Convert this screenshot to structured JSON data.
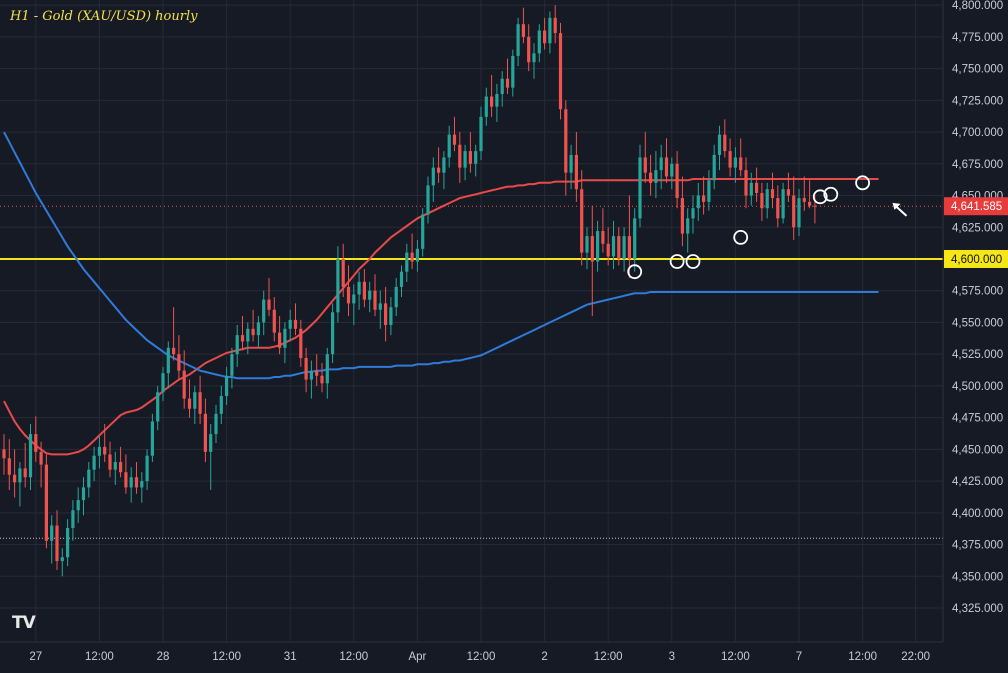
{
  "chart_data": {
    "type": "candlestick",
    "title": "H1 - Gold (XAU/USD) hourly",
    "ylim": [
      4310,
      4810
    ],
    "y_ticks": [
      4325,
      4350,
      4375,
      4400,
      4425,
      4450,
      4475,
      4500,
      4525,
      4550,
      4575,
      4600,
      4625,
      4650,
      4675,
      4700,
      4725,
      4750,
      4775,
      4800
    ],
    "y_tick_labels": [
      "4,325.000",
      "4,350.000",
      "4,375.000",
      "4,400.000",
      "4,425.000",
      "4,450.000",
      "4,475.000",
      "4,500.000",
      "4,525.000",
      "4,550.000",
      "4,575.000",
      "4,600.000",
      "4,625.000",
      "4,650.000",
      "4,675.000",
      "4,700.000",
      "4,725.000",
      "4,750.000",
      "4,775.000",
      "4,800.000"
    ],
    "x_tick_labels": [
      "27",
      "12:00",
      "28",
      "12:00",
      "31",
      "12:00",
      "Apr",
      "12:00",
      "2",
      "12:00",
      "3",
      "12:00",
      "7",
      "12:00",
      "22:00"
    ],
    "x_tick_index": [
      6,
      18,
      30,
      42,
      54,
      66,
      78,
      90,
      102,
      114,
      126,
      138,
      150,
      162,
      172
    ],
    "last_price": 4641.585,
    "last_price_label": "4,641.585",
    "horizontal_levels": [
      {
        "value": 4600,
        "label": "4,600.000",
        "color": "#f5e616",
        "style": "solid"
      },
      {
        "value": 4380,
        "color": "#c8c8c8",
        "style": "dotted"
      }
    ],
    "candle_colors": {
      "up": "#26a69a",
      "down": "#ef5350"
    },
    "candles": [
      [
        4450,
        4462,
        4430,
        4443
      ],
      [
        4443,
        4458,
        4418,
        4430
      ],
      [
        4430,
        4450,
        4412,
        4424
      ],
      [
        4424,
        4440,
        4405,
        4435
      ],
      [
        4435,
        4455,
        4420,
        4428
      ],
      [
        4428,
        4470,
        4418,
        4462
      ],
      [
        4462,
        4476,
        4440,
        4448
      ],
      [
        4448,
        4456,
        4420,
        4438
      ],
      [
        4438,
        4446,
        4372,
        4378
      ],
      [
        4378,
        4398,
        4360,
        4390
      ],
      [
        4390,
        4402,
        4355,
        4362
      ],
      [
        4362,
        4372,
        4350,
        4365
      ],
      [
        4365,
        4395,
        4358,
        4388
      ],
      [
        4388,
        4410,
        4378,
        4402
      ],
      [
        4402,
        4420,
        4392,
        4410
      ],
      [
        4410,
        4428,
        4398,
        4420
      ],
      [
        4420,
        4440,
        4412,
        4434
      ],
      [
        4434,
        4452,
        4425,
        4445
      ],
      [
        4445,
        4460,
        4435,
        4452
      ],
      [
        4452,
        4470,
        4440,
        4446
      ],
      [
        4446,
        4456,
        4428,
        4434
      ],
      [
        4434,
        4448,
        4422,
        4440
      ],
      [
        4440,
        4452,
        4428,
        4432
      ],
      [
        4432,
        4446,
        4415,
        4420
      ],
      [
        4420,
        4436,
        4408,
        4428
      ],
      [
        4428,
        4440,
        4415,
        4420
      ],
      [
        4420,
        4432,
        4408,
        4425
      ],
      [
        4425,
        4450,
        4418,
        4445
      ],
      [
        4445,
        4478,
        4440,
        4472
      ],
      [
        4472,
        4500,
        4465,
        4495
      ],
      [
        4495,
        4515,
        4488,
        4510
      ],
      [
        4510,
        4535,
        4498,
        4530
      ],
      [
        4530,
        4562,
        4520,
        4525
      ],
      [
        4525,
        4540,
        4505,
        4512
      ],
      [
        4512,
        4528,
        4482,
        4490
      ],
      [
        4490,
        4505,
        4475,
        4482
      ],
      [
        4482,
        4500,
        4470,
        4495
      ],
      [
        4495,
        4508,
        4470,
        4478
      ],
      [
        4478,
        4490,
        4440,
        4448
      ],
      [
        4448,
        4470,
        4418,
        4462
      ],
      [
        4462,
        4485,
        4455,
        4478
      ],
      [
        4478,
        4500,
        4470,
        4492
      ],
      [
        4492,
        4515,
        4485,
        4508
      ],
      [
        4508,
        4530,
        4498,
        4525
      ],
      [
        4525,
        4548,
        4515,
        4540
      ],
      [
        4540,
        4555,
        4528,
        4535
      ],
      [
        4535,
        4550,
        4525,
        4545
      ],
      [
        4545,
        4560,
        4535,
        4540
      ],
      [
        4540,
        4555,
        4530,
        4550
      ],
      [
        4550,
        4575,
        4540,
        4568
      ],
      [
        4568,
        4585,
        4555,
        4560
      ],
      [
        4560,
        4570,
        4535,
        4542
      ],
      [
        4542,
        4555,
        4525,
        4530
      ],
      [
        4530,
        4550,
        4518,
        4545
      ],
      [
        4545,
        4560,
        4535,
        4552
      ],
      [
        4552,
        4565,
        4540,
        4545
      ],
      [
        4545,
        4552,
        4515,
        4522
      ],
      [
        4522,
        4530,
        4495,
        4505
      ],
      [
        4505,
        4520,
        4490,
        4512
      ],
      [
        4512,
        4525,
        4500,
        4508
      ],
      [
        4508,
        4518,
        4495,
        4502
      ],
      [
        4502,
        4530,
        4490,
        4525
      ],
      [
        4525,
        4565,
        4518,
        4558
      ],
      [
        4558,
        4610,
        4550,
        4600
      ],
      [
        4600,
        4612,
        4570,
        4578
      ],
      [
        4578,
        4595,
        4555,
        4565
      ],
      [
        4565,
        4580,
        4548,
        4572
      ],
      [
        4572,
        4590,
        4560,
        4582
      ],
      [
        4582,
        4592,
        4562,
        4568
      ],
      [
        4568,
        4582,
        4558,
        4575
      ],
      [
        4575,
        4588,
        4555,
        4560
      ],
      [
        4560,
        4575,
        4545,
        4565
      ],
      [
        4565,
        4578,
        4535,
        4548
      ],
      [
        4548,
        4570,
        4540,
        4562
      ],
      [
        4562,
        4585,
        4555,
        4578
      ],
      [
        4578,
        4595,
        4570,
        4590
      ],
      [
        4590,
        4612,
        4582,
        4605
      ],
      [
        4605,
        4620,
        4592,
        4598
      ],
      [
        4598,
        4615,
        4590,
        4608
      ],
      [
        4608,
        4640,
        4602,
        4635
      ],
      [
        4635,
        4665,
        4628,
        4658
      ],
      [
        4658,
        4680,
        4645,
        4672
      ],
      [
        4672,
        4688,
        4660,
        4668
      ],
      [
        4668,
        4685,
        4655,
        4680
      ],
      [
        4680,
        4705,
        4672,
        4698
      ],
      [
        4698,
        4712,
        4685,
        4690
      ],
      [
        4690,
        4700,
        4660,
        4672
      ],
      [
        4672,
        4690,
        4662,
        4685
      ],
      [
        4685,
        4700,
        4668,
        4675
      ],
      [
        4675,
        4690,
        4665,
        4685
      ],
      [
        4685,
        4720,
        4678,
        4712
      ],
      [
        4712,
        4735,
        4705,
        4728
      ],
      [
        4728,
        4745,
        4712,
        4720
      ],
      [
        4720,
        4738,
        4708,
        4730
      ],
      [
        4730,
        4748,
        4720,
        4742
      ],
      [
        4742,
        4758,
        4730,
        4735
      ],
      [
        4735,
        4765,
        4728,
        4760
      ],
      [
        4760,
        4790,
        4752,
        4785
      ],
      [
        4785,
        4798,
        4770,
        4775
      ],
      [
        4775,
        4785,
        4748,
        4755
      ],
      [
        4755,
        4770,
        4742,
        4762
      ],
      [
        4762,
        4785,
        4755,
        4780
      ],
      [
        4780,
        4790,
        4765,
        4770
      ],
      [
        4770,
        4795,
        4762,
        4790
      ],
      [
        4790,
        4800,
        4770,
        4778
      ],
      [
        4778,
        4786,
        4710,
        4718
      ],
      [
        4718,
        4725,
        4650,
        4668
      ],
      [
        4668,
        4690,
        4655,
        4682
      ],
      [
        4682,
        4700,
        4645,
        4655
      ],
      [
        4655,
        4670,
        4595,
        4605
      ],
      [
        4605,
        4625,
        4592,
        4618
      ],
      [
        4618,
        4642,
        4555,
        4598
      ],
      [
        4598,
        4630,
        4590,
        4622
      ],
      [
        4622,
        4640,
        4605,
        4612
      ],
      [
        4612,
        4625,
        4595,
        4602
      ],
      [
        4602,
        4630,
        4592,
        4618
      ],
      [
        4618,
        4625,
        4595,
        4600
      ],
      [
        4600,
        4625,
        4590,
        4618
      ],
      [
        4618,
        4650,
        4585,
        4600
      ],
      [
        4600,
        4640,
        4590,
        4632
      ],
      [
        4632,
        4690,
        4625,
        4680
      ],
      [
        4680,
        4700,
        4660,
        4668
      ],
      [
        4668,
        4682,
        4650,
        4660
      ],
      [
        4660,
        4685,
        4648,
        4670
      ],
      [
        4670,
        4690,
        4655,
        4680
      ],
      [
        4680,
        4695,
        4660,
        4665
      ],
      [
        4665,
        4680,
        4655,
        4675
      ],
      [
        4675,
        4685,
        4640,
        4648
      ],
      [
        4648,
        4665,
        4610,
        4620
      ],
      [
        4620,
        4640,
        4605,
        4632
      ],
      [
        4632,
        4650,
        4620,
        4640
      ],
      [
        4640,
        4660,
        4630,
        4650
      ],
      [
        4650,
        4665,
        4635,
        4645
      ],
      [
        4645,
        4670,
        4638,
        4662
      ],
      [
        4662,
        4690,
        4655,
        4682
      ],
      [
        4682,
        4705,
        4670,
        4698
      ],
      [
        4698,
        4710,
        4680,
        4685
      ],
      [
        4685,
        4695,
        4665,
        4672
      ],
      [
        4672,
        4688,
        4660,
        4680
      ],
      [
        4680,
        4695,
        4665,
        4670
      ],
      [
        4670,
        4680,
        4640,
        4650
      ],
      [
        4650,
        4668,
        4642,
        4660
      ],
      [
        4660,
        4672,
        4645,
        4652
      ],
      [
        4652,
        4660,
        4630,
        4640
      ],
      [
        4640,
        4660,
        4632,
        4655
      ],
      [
        4655,
        4668,
        4640,
        4648
      ],
      [
        4648,
        4658,
        4625,
        4632
      ],
      [
        4632,
        4660,
        4628,
        4655
      ],
      [
        4655,
        4668,
        4645,
        4650
      ],
      [
        4650,
        4665,
        4615,
        4625
      ],
      [
        4625,
        4655,
        4618,
        4648
      ],
      [
        4648,
        4665,
        4638,
        4645
      ],
      [
        4645,
        4662,
        4640,
        4642
      ],
      [
        4642,
        4650,
        4628,
        4641.585
      ]
    ],
    "series": [
      {
        "name": "",
        "color": "#e84a4a",
        "values": [
          4488,
          4480,
          4472,
          4466,
          4461,
          4457,
          4453,
          4450,
          4447,
          4446,
          4446,
          4446,
          4446,
          4447,
          4448,
          4450,
          4453,
          4457,
          4461,
          4465,
          4469,
          4473,
          4477,
          4479,
          4480,
          4481,
          4483,
          4486,
          4489,
          4492,
          4496,
          4499,
          4502,
          4505,
          4507,
          4509,
          4512,
          4515,
          4518,
          4520,
          4522,
          4524,
          4526,
          4527,
          4528,
          4529,
          4530,
          4530,
          4530,
          4530,
          4530,
          4531,
          4532,
          4534,
          4536,
          4538,
          4541,
          4544,
          4548,
          4552,
          4557,
          4562,
          4567,
          4572,
          4577,
          4582,
          4587,
          4592,
          4596,
          4600,
          4605,
          4609,
          4613,
          4617,
          4620,
          4623,
          4626,
          4629,
          4632,
          4634,
          4636,
          4638,
          4640,
          4642,
          4644,
          4646,
          4648,
          4649,
          4650,
          4651,
          4652,
          4653,
          4654,
          4655,
          4656,
          4657,
          4657,
          4658,
          4658,
          4659,
          4659,
          4660,
          4660,
          4660,
          4661,
          4661,
          4661,
          4661,
          4661,
          4662,
          4662,
          4662,
          4662,
          4662,
          4662,
          4662,
          4662,
          4662,
          4662,
          4662,
          4662,
          4662,
          4662,
          4662,
          4662,
          4662,
          4662,
          4662,
          4662,
          4662,
          4663,
          4663,
          4663,
          4663,
          4663,
          4663,
          4663,
          4663,
          4663,
          4663,
          4663,
          4663,
          4663,
          4663,
          4663,
          4663,
          4663,
          4663,
          4663,
          4663,
          4663,
          4663,
          4663,
          4663,
          4663,
          4663,
          4663,
          4663,
          4663,
          4663,
          4663,
          4663,
          4663,
          4663,
          4663,
          4663
        ]
      },
      {
        "name": "",
        "color": "#2f7bd8",
        "values": [
          4700,
          4692,
          4684,
          4676,
          4668,
          4660,
          4652,
          4645,
          4638,
          4631,
          4624,
          4617,
          4610,
          4604,
          4598,
          4592,
          4587,
          4582,
          4577,
          4572,
          4567,
          4562,
          4557,
          4552,
          4548,
          4544,
          4540,
          4536,
          4533,
          4530,
          4527,
          4524,
          4522,
          4520,
          4518,
          4516,
          4514,
          4512,
          4511,
          4510,
          4509,
          4508,
          4507,
          4507,
          4506,
          4506,
          4506,
          4506,
          4506,
          4506,
          4506,
          4507,
          4507,
          4508,
          4508,
          4509,
          4510,
          4511,
          4511,
          4512,
          4512,
          4513,
          4513,
          4513,
          4514,
          4514,
          4514,
          4515,
          4515,
          4515,
          4515,
          4515,
          4515,
          4515,
          4516,
          4516,
          4516,
          4516,
          4517,
          4517,
          4517,
          4518,
          4518,
          4519,
          4519,
          4520,
          4520,
          4521,
          4522,
          4523,
          4524,
          4526,
          4528,
          4530,
          4532,
          4534,
          4536,
          4538,
          4540,
          4542,
          4544,
          4546,
          4548,
          4550,
          4552,
          4554,
          4556,
          4558,
          4560,
          4562,
          4564,
          4565,
          4566,
          4567,
          4568,
          4569,
          4570,
          4571,
          4572,
          4573,
          4573,
          4573,
          4574,
          4574,
          4574,
          4574,
          4574,
          4574,
          4574,
          4574,
          4574,
          4574,
          4574,
          4574,
          4574,
          4574,
          4574,
          4574,
          4574,
          4574,
          4574,
          4574,
          4574,
          4574,
          4574,
          4574,
          4574,
          4574,
          4574,
          4574,
          4574,
          4574,
          4574,
          4574,
          4574,
          4574,
          4574,
          4574,
          4574,
          4574,
          4574,
          4574,
          4574,
          4574,
          4574,
          4574
        ]
      }
    ],
    "annotations": [
      {
        "type": "circle",
        "index": 119,
        "value": 4590
      },
      {
        "type": "circle",
        "index": 127,
        "value": 4598
      },
      {
        "type": "circle",
        "index": 130,
        "value": 4598
      },
      {
        "type": "circle",
        "index": 139,
        "value": 4617
      },
      {
        "type": "circle",
        "index": 154,
        "value": 4649
      },
      {
        "type": "circle",
        "index": 156,
        "value": 4651
      },
      {
        "type": "circle",
        "index": 162,
        "value": 4660
      },
      {
        "type": "arrow",
        "index": 165,
        "value": 4630
      }
    ]
  }
}
